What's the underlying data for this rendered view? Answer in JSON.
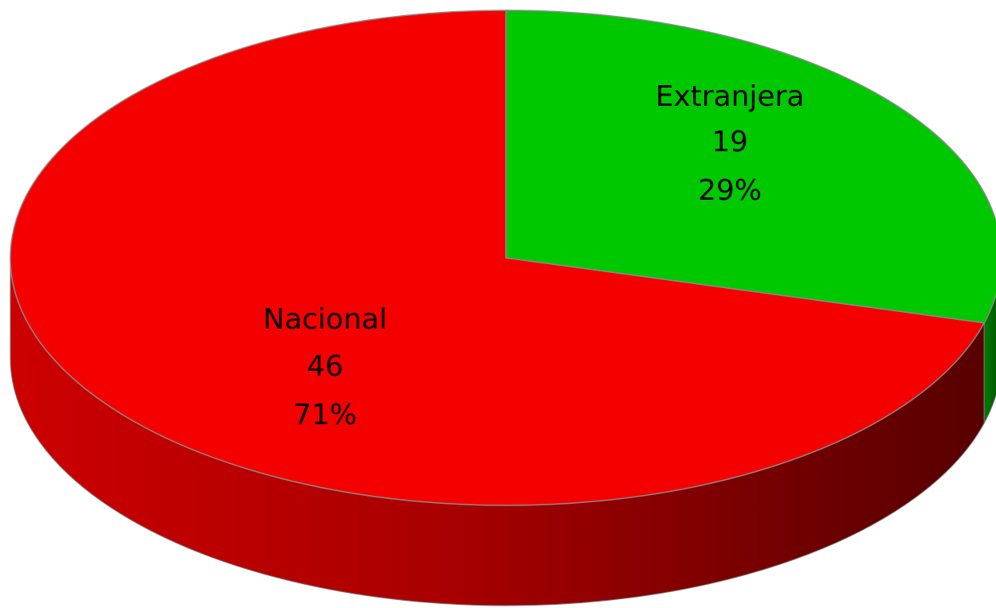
{
  "chart_data": {
    "type": "pie",
    "style": "3d",
    "slices": [
      {
        "name": "Extranjera",
        "value": 19,
        "percent": "29%",
        "color": "#00c800",
        "side_color": "#006400"
      },
      {
        "name": "Nacional",
        "value": 46,
        "percent": "71%",
        "color": "#f50000",
        "side_color": "#a00000"
      }
    ],
    "legend": "none"
  }
}
